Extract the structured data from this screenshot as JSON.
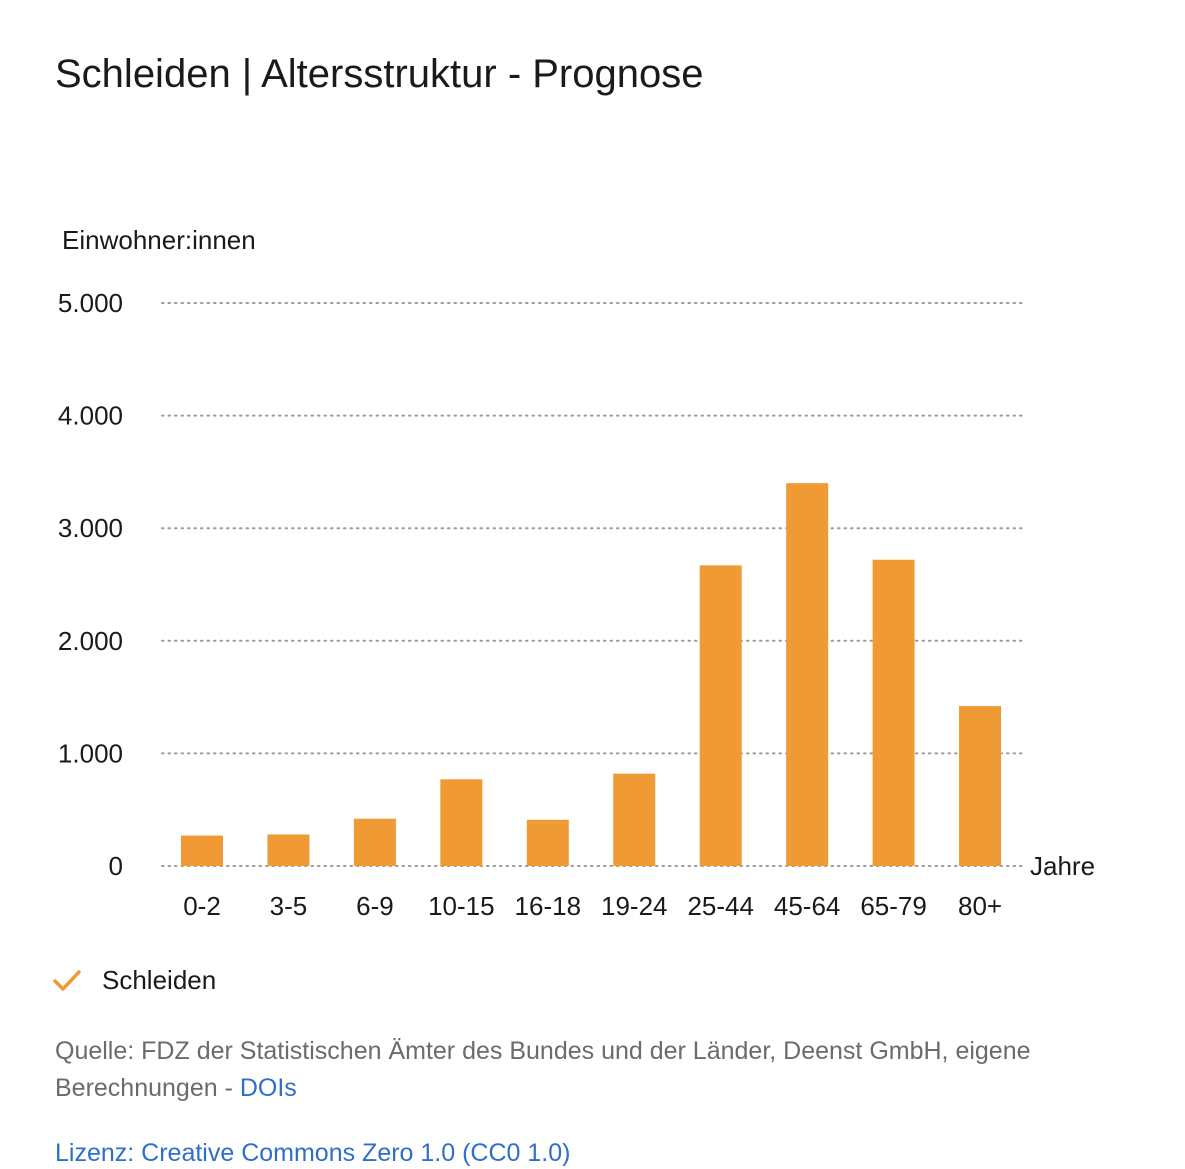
{
  "chart_data": {
    "type": "bar",
    "title": "Schleiden | Altersstruktur - Prognose",
    "ylabel": "Einwohner:innen",
    "xlabel": "Jahre",
    "categories": [
      "0-2",
      "3-5",
      "6-9",
      "10-15",
      "16-18",
      "19-24",
      "25-44",
      "45-64",
      "65-79",
      "80+"
    ],
    "series": [
      {
        "name": "Schleiden",
        "values": [
          270,
          280,
          420,
          770,
          410,
          820,
          2670,
          3400,
          2720,
          1420
        ],
        "color": "#ef9a35"
      }
    ],
    "ylim": [
      0,
      5000
    ],
    "yticks": [
      0,
      1000,
      2000,
      3000,
      4000,
      5000
    ],
    "ytick_labels": [
      "0",
      "1.000",
      "2.000",
      "3.000",
      "4.000",
      "5.000"
    ],
    "grid": true,
    "legend": "bottom-left"
  },
  "footer": {
    "source_prefix": "Quelle: FDZ der Statistischen Ämter des Bundes und der Länder, Deenst GmbH, eigene Berechnungen -",
    "doi_link": "DOIs",
    "license": "Lizenz: Creative Commons Zero 1.0 (CC0 1.0)"
  },
  "icons": {
    "legend_marker": "checkmark-icon"
  }
}
